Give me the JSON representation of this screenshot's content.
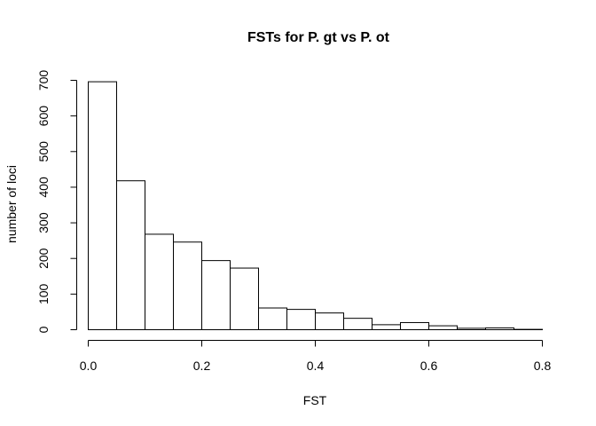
{
  "chart_data": {
    "type": "bar",
    "title": "FSTs for P. gt vs P. ot",
    "xlabel": "FST",
    "ylabel": "number of loci",
    "bin_edges": [
      0.0,
      0.05,
      0.1,
      0.15,
      0.2,
      0.25,
      0.3,
      0.35,
      0.4,
      0.45,
      0.5,
      0.55,
      0.6,
      0.65,
      0.7,
      0.75,
      0.8
    ],
    "values": [
      696,
      418,
      268,
      246,
      194,
      173,
      61,
      57,
      47,
      32,
      14,
      20,
      11,
      4,
      5,
      1
    ],
    "xlim": [
      0,
      0.8
    ],
    "ylim": [
      0,
      700
    ],
    "x_ticks": [
      "0.0",
      "0.2",
      "0.4",
      "0.6",
      "0.8"
    ],
    "x_tick_values": [
      0.0,
      0.2,
      0.4,
      0.6,
      0.8
    ],
    "y_ticks": [
      "0",
      "100",
      "200",
      "300",
      "400",
      "500",
      "600",
      "700"
    ],
    "y_tick_values": [
      0,
      100,
      200,
      300,
      400,
      500,
      600,
      700
    ],
    "grid": false,
    "colors": {
      "bar_fill": "#ffffff",
      "bar_stroke": "#000000"
    }
  }
}
